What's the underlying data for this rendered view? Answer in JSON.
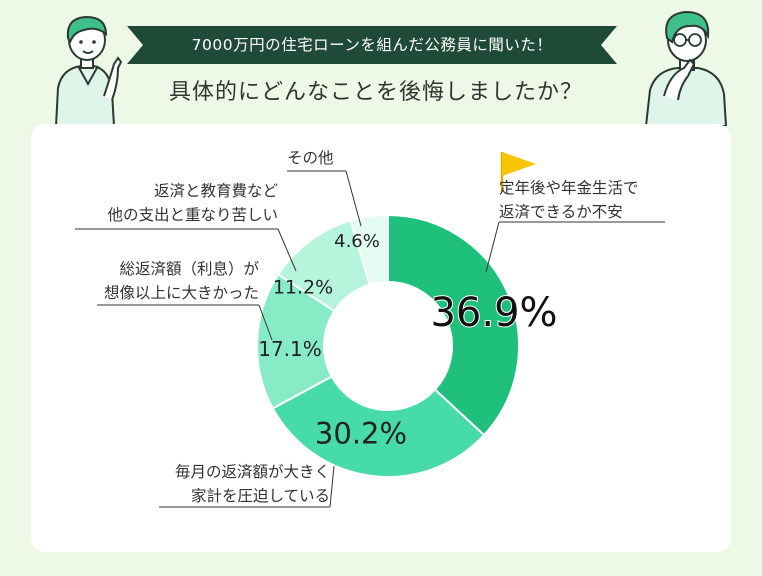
{
  "header": {
    "banner_text": "7000万円の住宅ローンを組んだ公務員に聞いた！",
    "question": "具体的にどんなことを後悔しましたか？"
  },
  "colors": {
    "background": "#eef8e6",
    "banner": "#1f4a38",
    "accent": "#16c27a",
    "flag": "#f7c600"
  },
  "icons": {
    "left_person": "pointing-person-icon",
    "right_person": "thinking-person-icon",
    "flag": "flag-icon"
  },
  "chart_data": {
    "type": "pie",
    "variant": "donut",
    "start": "12 o'clock, clockwise",
    "slices": [
      {
        "label": "定年後や年金生活で返済できるか不安",
        "label_lines": [
          "定年後や年金生活で",
          "返済できるか不安"
        ],
        "value": 36.9,
        "value_label": "36.9%",
        "color": "#1fbf7c"
      },
      {
        "label": "毎月の返済額が大きく家計を圧迫している",
        "label_lines": [
          "毎月の返済額が大きく",
          "家計を圧迫している"
        ],
        "value": 30.2,
        "value_label": "30.2%",
        "color": "#47dca7"
      },
      {
        "label": "総返済額（利息）が想像以上に大きかった",
        "label_lines": [
          "総返済額（利息）が",
          "想像以上に大きかった"
        ],
        "value": 17.1,
        "value_label": "17.1%",
        "color": "#87ecc6"
      },
      {
        "label": "返済と教育費など他の支出と重なり苦しい",
        "label_lines": [
          "返済と教育費など",
          "他の支出と重なり苦しい"
        ],
        "value": 11.2,
        "value_label": "11.2%",
        "color": "#b6f4dc"
      },
      {
        "label": "その他",
        "label_lines": [
          "その他"
        ],
        "value": 4.6,
        "value_label": "4.6%",
        "color": "#e3fbf1"
      }
    ]
  }
}
